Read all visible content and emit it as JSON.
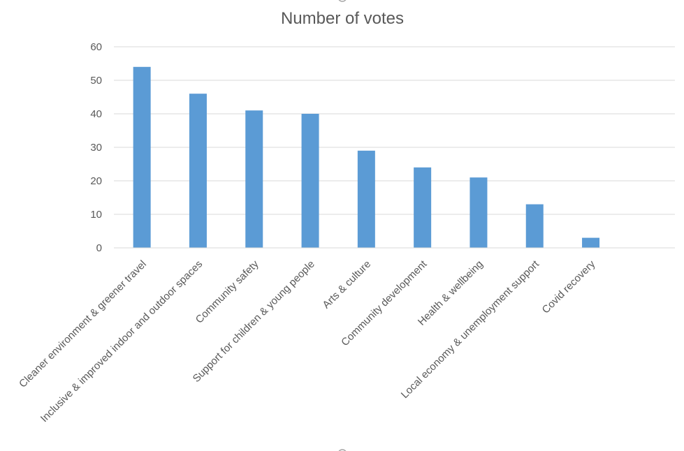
{
  "chart_data": {
    "type": "bar",
    "title": "Number of votes",
    "categories": [
      "Cleaner environment & greener travel",
      "Inclusive & improved indoor and outdoor spaces",
      "Community safety",
      "Support for children & young people",
      "Arts & culture",
      "Community development",
      "Health & wellbeing",
      "Local economy & unemployment support",
      "Covid recovery"
    ],
    "series": [
      {
        "values": [
          54,
          46,
          41,
          40,
          29,
          24,
          21,
          13,
          3
        ],
        "color": "#5b9bd5"
      }
    ],
    "ylim": [
      0,
      60
    ],
    "yticks": [
      0,
      10,
      20,
      30,
      40,
      50,
      60
    ],
    "grid": true,
    "legend": "none",
    "xlabel": "",
    "ylabel": ""
  }
}
